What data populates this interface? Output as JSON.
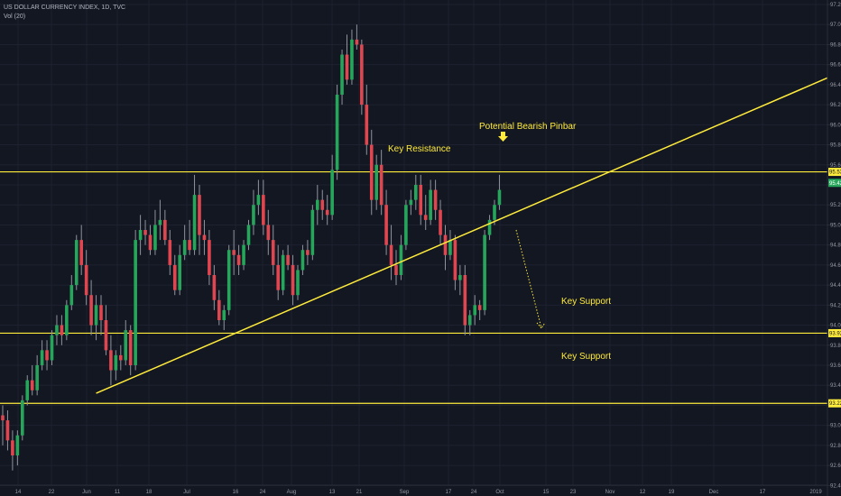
{
  "legend": {
    "symbol_line": "US DOLLAR CURRENCY INDEX, 1D, TVC",
    "volume_line": "Vol (20)"
  },
  "colors": {
    "background": "#131722",
    "grid": "#1e2230",
    "up": "#26a65b",
    "down": "#e0464f",
    "wick": "#8f939c",
    "annotation": "#ffeb3b",
    "axis_text": "#9598a1"
  },
  "chart_data": {
    "type": "candlestick",
    "title": "US DOLLAR CURRENCY INDEX, 1D, TVC",
    "xlabel": "",
    "ylabel": "",
    "ylim": [
      92.37,
      97.22
    ],
    "y_ticks": [
      "97.20",
      "97.00",
      "96.80",
      "96.60",
      "96.40",
      "96.20",
      "96.00",
      "95.80",
      "95.60",
      "95.40",
      "95.20",
      "95.00",
      "94.80",
      "94.60",
      "94.40",
      "94.20",
      "94.00",
      "93.80",
      "93.60",
      "93.40",
      "93.20",
      "93.00",
      "92.80",
      "92.60",
      "92.40"
    ],
    "x_ticks": [
      "14",
      "22",
      "Jun",
      "11",
      "18",
      "Jul",
      "16",
      "24",
      "Aug",
      "13",
      "21",
      "Sep",
      "17",
      "24",
      "Oct",
      "15",
      "23",
      "Nov",
      "12",
      "19",
      "Dec",
      "17",
      "2019"
    ],
    "price_tags": [
      {
        "label": "95.53",
        "value": 95.53,
        "style": "yellow"
      },
      {
        "label": "95.42",
        "value": 95.42,
        "style": "green"
      },
      {
        "label": "93.92",
        "value": 93.92,
        "style": "yellow"
      },
      {
        "label": "93.22",
        "value": 93.22,
        "style": "yellow"
      }
    ],
    "horizontal_levels": [
      95.53,
      93.92,
      93.22
    ],
    "trendline": {
      "from": {
        "x": 19,
        "y": 93.32
      },
      "to": {
        "x": 164.5,
        "y": 96.4
      }
    },
    "projection": {
      "from": {
        "x": 104,
        "y": 94.95
      },
      "to": {
        "x": 110,
        "y": 93.97
      }
    },
    "annotations": [
      {
        "text": "Key Resistance",
        "x": 78,
        "y": 95.6
      },
      {
        "text": "Potential Bearish Pinbar",
        "x": 97,
        "y": 95.9
      },
      {
        "text": "Key Support",
        "x": 113,
        "y": 94.07
      },
      {
        "text": "Key Support",
        "x": 113,
        "y": 93.37
      }
    ],
    "candles": [
      {
        "o": 93.1,
        "h": 93.2,
        "l": 92.8,
        "c": 93.05
      },
      {
        "o": 93.05,
        "h": 93.15,
        "l": 92.75,
        "c": 92.85
      },
      {
        "o": 92.85,
        "h": 92.95,
        "l": 92.55,
        "c": 92.7
      },
      {
        "o": 92.7,
        "h": 92.95,
        "l": 92.6,
        "c": 92.9
      },
      {
        "o": 92.9,
        "h": 93.3,
        "l": 92.85,
        "c": 93.25
      },
      {
        "o": 93.25,
        "h": 93.5,
        "l": 93.2,
        "c": 93.45
      },
      {
        "o": 93.45,
        "h": 93.6,
        "l": 93.3,
        "c": 93.35
      },
      {
        "o": 93.35,
        "h": 93.7,
        "l": 93.3,
        "c": 93.6
      },
      {
        "o": 93.6,
        "h": 93.85,
        "l": 93.55,
        "c": 93.75
      },
      {
        "o": 93.75,
        "h": 93.85,
        "l": 93.55,
        "c": 93.65
      },
      {
        "o": 93.65,
        "h": 93.95,
        "l": 93.6,
        "c": 93.9
      },
      {
        "o": 93.9,
        "h": 94.1,
        "l": 93.8,
        "c": 94.0
      },
      {
        "o": 94.0,
        "h": 94.1,
        "l": 93.8,
        "c": 93.9
      },
      {
        "o": 93.9,
        "h": 94.25,
        "l": 93.85,
        "c": 94.2
      },
      {
        "o": 94.2,
        "h": 94.5,
        "l": 94.15,
        "c": 94.4
      },
      {
        "o": 94.4,
        "h": 94.9,
        "l": 94.35,
        "c": 94.85
      },
      {
        "o": 94.85,
        "h": 95.0,
        "l": 94.5,
        "c": 94.6
      },
      {
        "o": 94.6,
        "h": 94.75,
        "l": 94.2,
        "c": 94.3
      },
      {
        "o": 94.3,
        "h": 94.45,
        "l": 93.9,
        "c": 94.0
      },
      {
        "o": 94.0,
        "h": 94.3,
        "l": 93.85,
        "c": 94.2
      },
      {
        "o": 94.2,
        "h": 94.3,
        "l": 93.9,
        "c": 94.05
      },
      {
        "o": 94.05,
        "h": 94.2,
        "l": 93.7,
        "c": 93.75
      },
      {
        "o": 93.75,
        "h": 93.9,
        "l": 93.4,
        "c": 93.55
      },
      {
        "o": 93.55,
        "h": 93.75,
        "l": 93.45,
        "c": 93.7
      },
      {
        "o": 93.7,
        "h": 93.8,
        "l": 93.55,
        "c": 93.65
      },
      {
        "o": 93.65,
        "h": 94.05,
        "l": 93.6,
        "c": 93.95
      },
      {
        "o": 93.95,
        "h": 94.0,
        "l": 93.5,
        "c": 93.6
      },
      {
        "o": 93.6,
        "h": 94.95,
        "l": 93.55,
        "c": 94.85
      },
      {
        "o": 94.85,
        "h": 95.1,
        "l": 94.7,
        "c": 94.95
      },
      {
        "o": 94.95,
        "h": 95.05,
        "l": 94.8,
        "c": 94.9
      },
      {
        "o": 94.9,
        "h": 95.0,
        "l": 94.7,
        "c": 94.75
      },
      {
        "o": 94.75,
        "h": 95.15,
        "l": 94.7,
        "c": 95.0
      },
      {
        "o": 95.0,
        "h": 95.25,
        "l": 94.85,
        "c": 95.05
      },
      {
        "o": 95.05,
        "h": 95.15,
        "l": 94.8,
        "c": 94.85
      },
      {
        "o": 94.85,
        "h": 94.95,
        "l": 94.5,
        "c": 94.6
      },
      {
        "o": 94.6,
        "h": 94.7,
        "l": 94.3,
        "c": 94.35
      },
      {
        "o": 94.35,
        "h": 94.8,
        "l": 94.3,
        "c": 94.7
      },
      {
        "o": 94.7,
        "h": 95.0,
        "l": 94.65,
        "c": 94.85
      },
      {
        "o": 94.85,
        "h": 95.05,
        "l": 94.7,
        "c": 94.75
      },
      {
        "o": 94.75,
        "h": 95.5,
        "l": 94.7,
        "c": 95.3
      },
      {
        "o": 95.3,
        "h": 95.4,
        "l": 94.7,
        "c": 94.9
      },
      {
        "o": 94.9,
        "h": 95.05,
        "l": 94.7,
        "c": 94.85
      },
      {
        "o": 94.85,
        "h": 94.95,
        "l": 94.4,
        "c": 94.5
      },
      {
        "o": 94.5,
        "h": 94.6,
        "l": 94.15,
        "c": 94.25
      },
      {
        "o": 94.25,
        "h": 94.35,
        "l": 94.0,
        "c": 94.05
      },
      {
        "o": 94.05,
        "h": 94.2,
        "l": 93.95,
        "c": 94.15
      },
      {
        "o": 94.15,
        "h": 94.8,
        "l": 94.1,
        "c": 94.75
      },
      {
        "o": 94.75,
        "h": 94.95,
        "l": 94.5,
        "c": 94.7
      },
      {
        "o": 94.7,
        "h": 94.8,
        "l": 94.5,
        "c": 94.6
      },
      {
        "o": 94.6,
        "h": 94.85,
        "l": 94.55,
        "c": 94.8
      },
      {
        "o": 94.8,
        "h": 95.05,
        "l": 94.75,
        "c": 95.0
      },
      {
        "o": 95.0,
        "h": 95.35,
        "l": 94.9,
        "c": 95.2
      },
      {
        "o": 95.2,
        "h": 95.45,
        "l": 95.1,
        "c": 95.3
      },
      {
        "o": 95.3,
        "h": 95.45,
        "l": 94.9,
        "c": 95.0
      },
      {
        "o": 95.0,
        "h": 95.15,
        "l": 94.7,
        "c": 94.85
      },
      {
        "o": 94.85,
        "h": 95.0,
        "l": 94.5,
        "c": 94.6
      },
      {
        "o": 94.6,
        "h": 94.8,
        "l": 94.25,
        "c": 94.35
      },
      {
        "o": 94.35,
        "h": 94.75,
        "l": 94.3,
        "c": 94.7
      },
      {
        "o": 94.7,
        "h": 94.8,
        "l": 94.55,
        "c": 94.6
      },
      {
        "o": 94.6,
        "h": 94.7,
        "l": 94.2,
        "c": 94.3
      },
      {
        "o": 94.3,
        "h": 94.6,
        "l": 94.25,
        "c": 94.55
      },
      {
        "o": 94.55,
        "h": 94.8,
        "l": 94.5,
        "c": 94.75
      },
      {
        "o": 94.75,
        "h": 94.85,
        "l": 94.6,
        "c": 94.7
      },
      {
        "o": 94.7,
        "h": 95.2,
        "l": 94.65,
        "c": 95.15
      },
      {
        "o": 95.15,
        "h": 95.4,
        "l": 95.0,
        "c": 95.25
      },
      {
        "o": 95.25,
        "h": 95.35,
        "l": 95.05,
        "c": 95.15
      },
      {
        "o": 95.15,
        "h": 95.3,
        "l": 95.0,
        "c": 95.1
      },
      {
        "o": 95.1,
        "h": 95.7,
        "l": 95.05,
        "c": 95.55
      },
      {
        "o": 95.55,
        "h": 96.4,
        "l": 95.45,
        "c": 96.3
      },
      {
        "o": 96.3,
        "h": 96.75,
        "l": 96.2,
        "c": 96.7
      },
      {
        "o": 96.7,
        "h": 96.9,
        "l": 96.4,
        "c": 96.45
      },
      {
        "o": 96.45,
        "h": 96.95,
        "l": 96.4,
        "c": 96.85
      },
      {
        "o": 96.85,
        "h": 97.0,
        "l": 96.75,
        "c": 96.8
      },
      {
        "o": 96.8,
        "h": 96.85,
        "l": 96.1,
        "c": 96.2
      },
      {
        "o": 96.2,
        "h": 96.4,
        "l": 95.7,
        "c": 95.8
      },
      {
        "o": 95.8,
        "h": 95.95,
        "l": 95.1,
        "c": 95.25
      },
      {
        "o": 95.25,
        "h": 95.7,
        "l": 95.15,
        "c": 95.6
      },
      {
        "o": 95.6,
        "h": 95.75,
        "l": 95.1,
        "c": 95.2
      },
      {
        "o": 95.2,
        "h": 95.35,
        "l": 94.7,
        "c": 94.8
      },
      {
        "o": 94.8,
        "h": 95.0,
        "l": 94.45,
        "c": 94.6
      },
      {
        "o": 94.6,
        "h": 94.75,
        "l": 94.4,
        "c": 94.5
      },
      {
        "o": 94.5,
        "h": 94.9,
        "l": 94.45,
        "c": 94.8
      },
      {
        "o": 94.8,
        "h": 95.25,
        "l": 94.75,
        "c": 95.2
      },
      {
        "o": 95.2,
        "h": 95.35,
        "l": 95.1,
        "c": 95.25
      },
      {
        "o": 95.25,
        "h": 95.5,
        "l": 95.15,
        "c": 95.4
      },
      {
        "o": 95.4,
        "h": 95.5,
        "l": 95.0,
        "c": 95.1
      },
      {
        "o": 95.1,
        "h": 95.3,
        "l": 94.95,
        "c": 95.05
      },
      {
        "o": 95.05,
        "h": 95.45,
        "l": 95.0,
        "c": 95.35
      },
      {
        "o": 95.35,
        "h": 95.45,
        "l": 95.05,
        "c": 95.15
      },
      {
        "o": 95.15,
        "h": 95.25,
        "l": 94.8,
        "c": 94.9
      },
      {
        "o": 94.9,
        "h": 95.0,
        "l": 94.55,
        "c": 94.7
      },
      {
        "o": 94.7,
        "h": 94.95,
        "l": 94.65,
        "c": 94.85
      },
      {
        "o": 94.85,
        "h": 94.9,
        "l": 94.35,
        "c": 94.45
      },
      {
        "o": 94.45,
        "h": 94.6,
        "l": 94.3,
        "c": 94.5
      },
      {
        "o": 94.5,
        "h": 94.6,
        "l": 93.9,
        "c": 94.0
      },
      {
        "o": 94.0,
        "h": 94.15,
        "l": 93.9,
        "c": 94.1
      },
      {
        "o": 94.1,
        "h": 94.3,
        "l": 94.0,
        "c": 94.2
      },
      {
        "o": 94.2,
        "h": 94.25,
        "l": 94.05,
        "c": 94.15
      },
      {
        "o": 94.15,
        "h": 94.95,
        "l": 94.1,
        "c": 94.9
      },
      {
        "o": 94.9,
        "h": 95.1,
        "l": 94.85,
        "c": 95.05
      },
      {
        "o": 95.05,
        "h": 95.25,
        "l": 95.0,
        "c": 95.2
      },
      {
        "o": 95.2,
        "h": 95.5,
        "l": 95.15,
        "c": 95.35
      }
    ]
  }
}
